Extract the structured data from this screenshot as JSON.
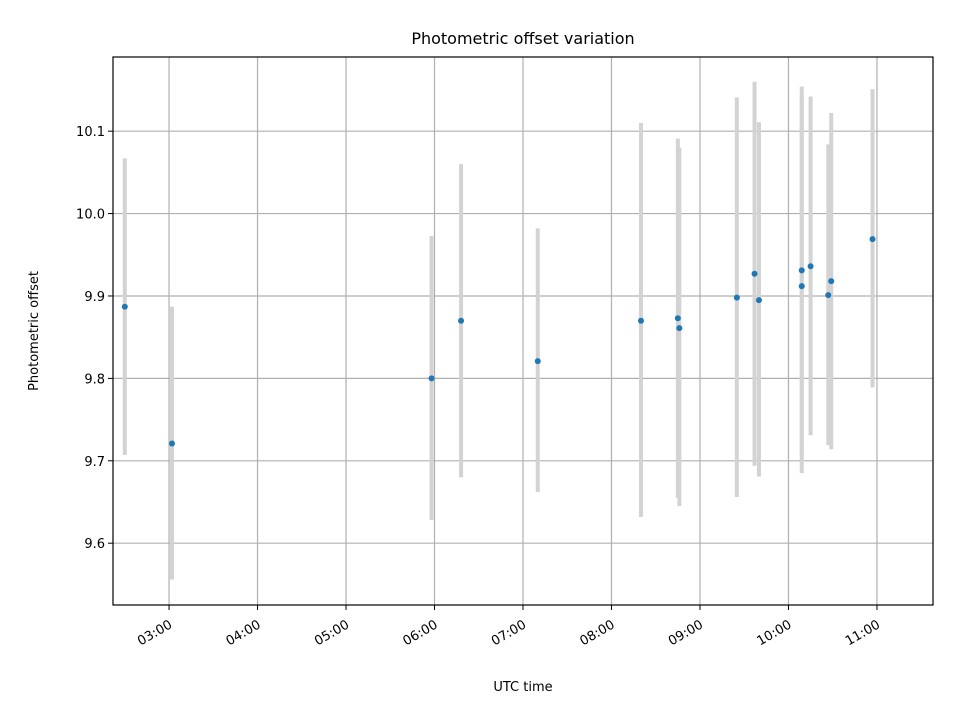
{
  "chart_data": {
    "type": "scatter",
    "title": "Photometric offset variation",
    "xlabel": "UTC time",
    "ylabel": "Photometric offset",
    "x_ticks": [
      "03:00",
      "04:00",
      "05:00",
      "06:00",
      "07:00",
      "08:00",
      "09:00",
      "10:00",
      "11:00"
    ],
    "y_ticks": [
      "9.6",
      "9.7",
      "9.8",
      "9.9",
      "10.0",
      "10.1"
    ],
    "xlim": [
      "02:22",
      "11:38"
    ],
    "ylim": [
      9.525,
      10.19
    ],
    "grid": true,
    "marker_color": "#1f77b4",
    "errorbar_color": "#d3d3d3",
    "points": [
      {
        "x": "02:30",
        "y": 9.887,
        "ylow": 9.707,
        "yhigh": 10.067
      },
      {
        "x": "03:02",
        "y": 9.721,
        "ylow": 9.556,
        "yhigh": 9.887
      },
      {
        "x": "05:58",
        "y": 9.8,
        "ylow": 9.628,
        "yhigh": 9.973
      },
      {
        "x": "06:18",
        "y": 9.87,
        "ylow": 9.68,
        "yhigh": 10.06
      },
      {
        "x": "07:10",
        "y": 9.821,
        "ylow": 9.662,
        "yhigh": 9.982
      },
      {
        "x": "08:20",
        "y": 9.87,
        "ylow": 9.632,
        "yhigh": 10.11
      },
      {
        "x": "08:45",
        "y": 9.873,
        "ylow": 9.655,
        "yhigh": 10.091
      },
      {
        "x": "08:46",
        "y": 9.861,
        "ylow": 9.645,
        "yhigh": 10.08
      },
      {
        "x": "09:25",
        "y": 9.898,
        "ylow": 9.656,
        "yhigh": 10.141
      },
      {
        "x": "09:37",
        "y": 9.927,
        "ylow": 9.694,
        "yhigh": 10.16
      },
      {
        "x": "09:40",
        "y": 9.895,
        "ylow": 9.681,
        "yhigh": 10.111
      },
      {
        "x": "10:09",
        "y": 9.931,
        "ylow": 9.708,
        "yhigh": 10.154
      },
      {
        "x": "10:09",
        "y": 9.912,
        "ylow": 9.685,
        "yhigh": 10.14
      },
      {
        "x": "10:15",
        "y": 9.936,
        "ylow": 9.731,
        "yhigh": 10.142
      },
      {
        "x": "10:27",
        "y": 9.901,
        "ylow": 9.719,
        "yhigh": 10.084
      },
      {
        "x": "10:29",
        "y": 9.918,
        "ylow": 9.714,
        "yhigh": 10.122
      },
      {
        "x": "10:57",
        "y": 9.969,
        "ylow": 9.789,
        "yhigh": 10.151
      }
    ]
  }
}
